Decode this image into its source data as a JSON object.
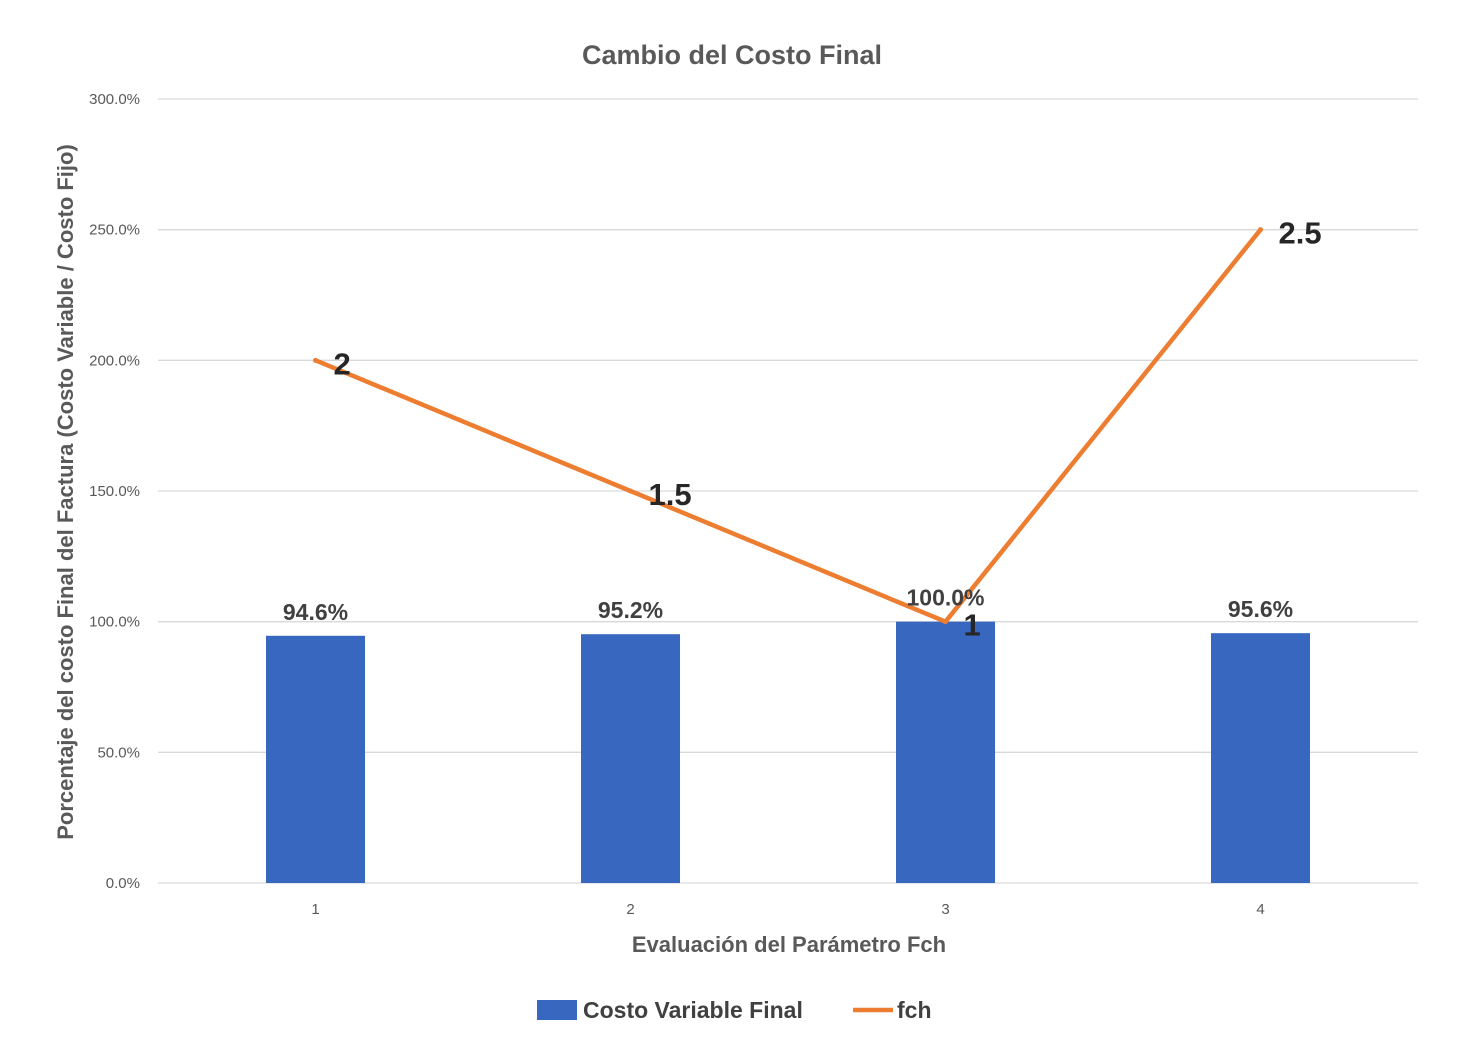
{
  "chart_data": {
    "type": "bar",
    "title": "Cambio del Costo Final",
    "xlabel": "Evaluación del Parámetro Fch",
    "ylabel": "Porcentaje del costo Final del Factura  (Costo Variable / Costo Fijo)",
    "ylim": [
      0,
      3.0
    ],
    "yticks": [
      "0.0%",
      "50.0%",
      "100.0%",
      "150.0%",
      "200.0%",
      "250.0%",
      "300.0%"
    ],
    "categories": [
      "1",
      "2",
      "3",
      "4"
    ],
    "grid": true,
    "legend_position": "bottom",
    "series": [
      {
        "name": "Costo Variable Final",
        "type": "bar",
        "color": "#3867c0",
        "values": [
          0.946,
          0.952,
          1.0,
          0.956
        ],
        "labels": [
          "94.6%",
          "95.2%",
          "100.0%",
          "95.6%"
        ]
      },
      {
        "name": "fch",
        "type": "line",
        "color": "#ed7d31",
        "values": [
          2,
          1.5,
          1,
          2.5
        ],
        "labels": [
          "2",
          "1.5",
          "1",
          "2.5"
        ]
      }
    ]
  }
}
